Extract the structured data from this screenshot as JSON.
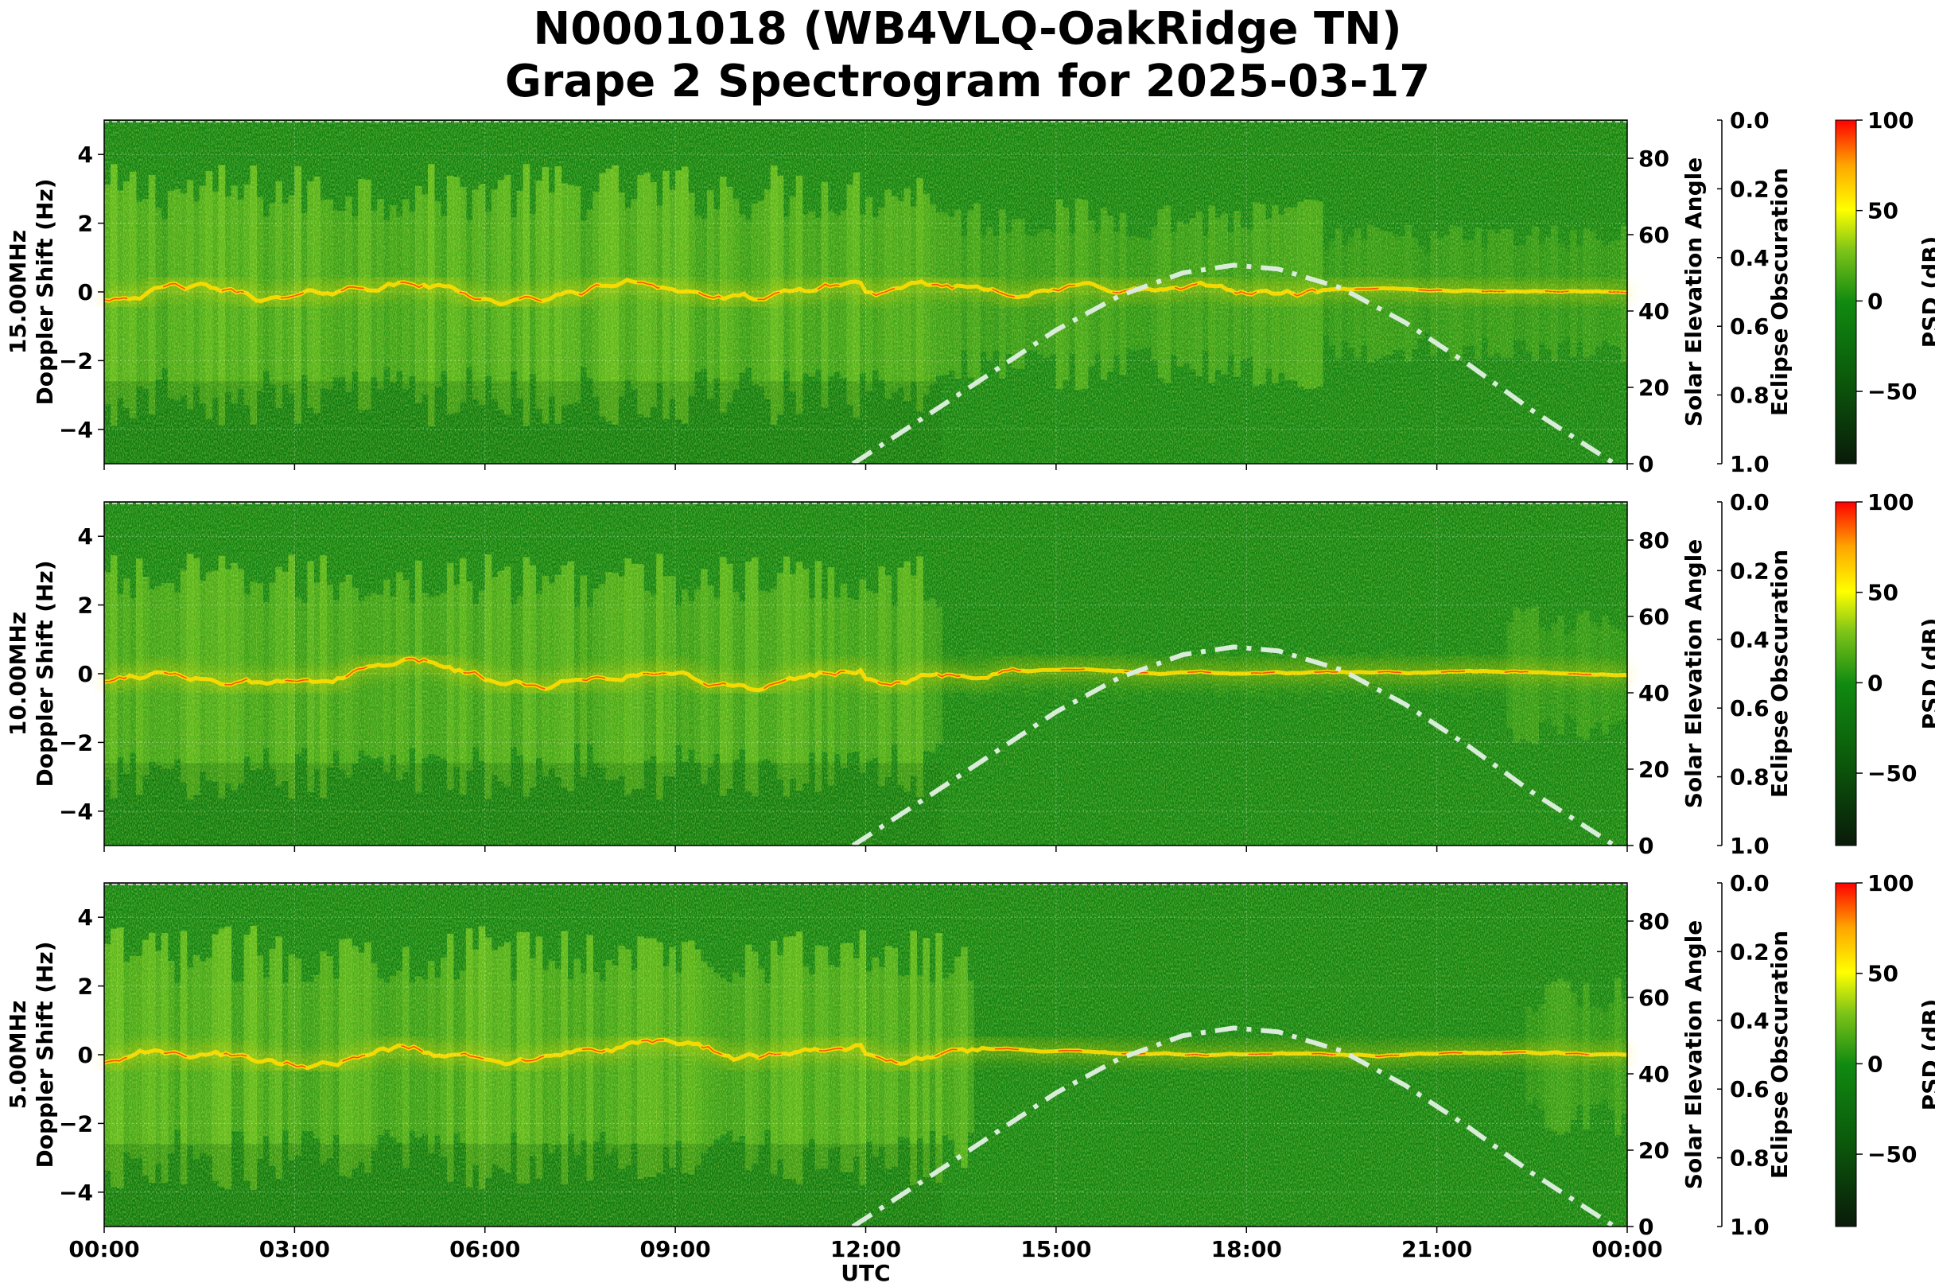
{
  "title": {
    "line1": "N0001018 (WB4VLQ-OakRidge TN)",
    "line2": "Grape 2 Spectrogram for 2025-03-17"
  },
  "colors": {
    "psd_low": "#0a1a0a",
    "psd_mid": "#108a10",
    "psd_high_mid": "#ffff00",
    "psd_max": "#ff0000",
    "solar_curve": "#d9ecd9"
  },
  "chart_data": [
    {
      "type": "heatmap",
      "panel": "15.00MHz",
      "ylabel": "15.00MHz\nDoppler Shift (Hz)",
      "ylabel_lines": [
        "15.00MHz",
        "Doppler Shift (Hz)"
      ],
      "y_ticks": [
        "4",
        "2",
        "0",
        "−2",
        "−4"
      ],
      "ylim": [
        -5,
        5
      ],
      "xlim_hours": [
        0,
        24
      ],
      "right_axis": {
        "label": "Solar Elevation Angle",
        "ticks": [
          "0",
          "20",
          "40",
          "60",
          "80"
        ],
        "ylim": [
          0,
          90
        ]
      },
      "eclipse_axis": {
        "label": "Eclipse Obscuration",
        "ticks": [
          "0.0",
          "0.2",
          "0.4",
          "0.6",
          "0.8",
          "1.0"
        ],
        "ylim": [
          0,
          1
        ]
      },
      "colorbar": {
        "label": "PSD (dB)",
        "ticks": [
          "100",
          "50",
          "0",
          "−50"
        ],
        "range": [
          -90,
          100
        ]
      },
      "solar_elevation": {
        "hours": [
          11.8,
          13,
          14,
          15,
          16,
          17,
          17.8,
          18.5,
          19.5,
          20.5,
          21.5,
          22.5,
          23.8
        ],
        "degrees": [
          0,
          13,
          24,
          35,
          44,
          50,
          52,
          51,
          46,
          37,
          26,
          14,
          0
        ]
      }
    },
    {
      "type": "heatmap",
      "panel": "10.00MHz",
      "ylabel": "10.00MHz\nDoppler Shift (Hz)",
      "ylabel_lines": [
        "10.00MHz",
        "Doppler Shift (Hz)"
      ],
      "y_ticks": [
        "4",
        "2",
        "0",
        "−2",
        "−4"
      ],
      "ylim": [
        -5,
        5
      ],
      "xlim_hours": [
        0,
        24
      ],
      "right_axis": {
        "label": "Solar Elevation Angle",
        "ticks": [
          "0",
          "20",
          "40",
          "60",
          "80"
        ],
        "ylim": [
          0,
          90
        ]
      },
      "eclipse_axis": {
        "label": "Eclipse Obscuration",
        "ticks": [
          "0.0",
          "0.2",
          "0.4",
          "0.6",
          "0.8",
          "1.0"
        ],
        "ylim": [
          0,
          1
        ]
      },
      "colorbar": {
        "label": "PSD (dB)",
        "ticks": [
          "100",
          "50",
          "0",
          "−50"
        ],
        "range": [
          -90,
          100
        ]
      },
      "solar_elevation": {
        "hours": [
          11.8,
          13,
          14,
          15,
          16,
          17,
          17.8,
          18.5,
          19.5,
          20.5,
          21.5,
          22.5,
          23.8
        ],
        "degrees": [
          0,
          13,
          24,
          35,
          44,
          50,
          52,
          51,
          46,
          37,
          26,
          14,
          0
        ]
      }
    },
    {
      "type": "heatmap",
      "panel": "5.00MHz",
      "ylabel": "5.00MHz\nDoppler Shift (Hz)",
      "ylabel_lines": [
        "5.00MHz",
        "Doppler Shift (Hz)"
      ],
      "y_ticks": [
        "4",
        "2",
        "0",
        "−2",
        "−4"
      ],
      "ylim": [
        -5,
        5
      ],
      "xlim_hours": [
        0,
        24
      ],
      "right_axis": {
        "label": "Solar Elevation Angle",
        "ticks": [
          "0",
          "20",
          "40",
          "60",
          "80"
        ],
        "ylim": [
          0,
          90
        ]
      },
      "eclipse_axis": {
        "label": "Eclipse Obscuration",
        "ticks": [
          "0.0",
          "0.2",
          "0.4",
          "0.6",
          "0.8",
          "1.0"
        ],
        "ylim": [
          0,
          1
        ]
      },
      "colorbar": {
        "label": "PSD (dB)",
        "ticks": [
          "100",
          "50",
          "0",
          "−50"
        ],
        "range": [
          -90,
          100
        ]
      },
      "solar_elevation": {
        "hours": [
          11.8,
          13,
          14,
          15,
          16,
          17,
          17.8,
          18.5,
          19.5,
          20.5,
          21.5,
          22.5,
          23.8
        ],
        "degrees": [
          0,
          13,
          24,
          35,
          44,
          50,
          52,
          51,
          46,
          37,
          26,
          14,
          0
        ]
      }
    }
  ],
  "x_axis": {
    "label": "UTC",
    "ticks": [
      "00:00",
      "03:00",
      "06:00",
      "09:00",
      "12:00",
      "15:00",
      "18:00",
      "21:00",
      "00:00"
    ]
  }
}
